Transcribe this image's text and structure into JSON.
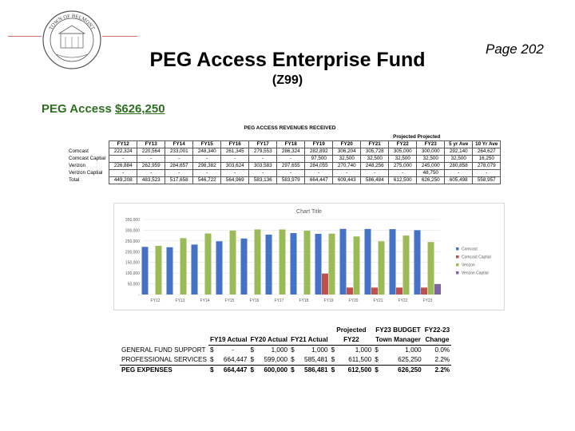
{
  "header": {
    "seal_text_top": "TOWN OF BELMONT",
    "page_number": "Page 202",
    "title": "PEG Access Enterprise Fund",
    "subtitle": "(Z99)"
  },
  "summary": {
    "label": "PEG Access",
    "amount": "$626,250"
  },
  "revenues": {
    "title": "PEG ACCESS REVENUES RECEIVED",
    "projected_label": "Projected Projected",
    "columns": [
      "FY12",
      "FY13",
      "FY14",
      "FY15",
      "FY16",
      "FY17",
      "FY18",
      "FY19",
      "FY20",
      "FY21",
      "FY22",
      "FY23",
      "5 yr Ave",
      "10 Yr Ave"
    ],
    "rows": [
      {
        "label": "Comcast",
        "values": [
          "222,324",
          "220,564",
          "233,001",
          "248,340",
          "261,345",
          "279,553",
          "286,324",
          "282,892",
          "306,204",
          "305,728",
          "305,000",
          "300,000",
          "292,140",
          "264,627"
        ]
      },
      {
        "label": "Comcast Captial",
        "values": [
          "-",
          "-",
          "-",
          "-",
          "-",
          "-",
          "-",
          "97,500",
          "32,500",
          "32,500",
          "32,500",
          "32,500",
          "32,500",
          "16,250"
        ]
      },
      {
        "label": "Verizon",
        "values": [
          "226,884",
          "262,959",
          "284,657",
          "298,382",
          "303,624",
          "303,583",
          "297,655",
          "284,055",
          "270,740",
          "248,256",
          "275,000",
          "245,000",
          "280,858",
          "278,079"
        ]
      },
      {
        "label": "Verizon Captial",
        "values": [
          "-",
          "-",
          "-",
          "-",
          "-",
          "-",
          "-",
          "-",
          "-",
          "-",
          "-",
          "48,750",
          "-",
          "-"
        ]
      },
      {
        "label": "Total",
        "values": [
          "449,208",
          "483,523",
          "517,658",
          "546,722",
          "564,969",
          "583,136",
          "583,979",
          "664,447",
          "609,443",
          "586,484",
          "612,500",
          "626,250",
          "605,498",
          "558,957"
        ]
      }
    ]
  },
  "chart_data": {
    "type": "bar",
    "title": "Chart Title",
    "categories": [
      "FY12",
      "FY13",
      "FY14",
      "FY15",
      "FY16",
      "FY17",
      "FY18",
      "FY19",
      "FY20",
      "FY21",
      "FY22",
      "FY23"
    ],
    "series": [
      {
        "name": "Comcast",
        "color": "#4472c4",
        "values": [
          222324,
          220564,
          233001,
          248340,
          261345,
          279553,
          286324,
          282892,
          306204,
          305728,
          305000,
          300000
        ]
      },
      {
        "name": "Comcast Captial",
        "color": "#c0504d",
        "values": [
          0,
          0,
          0,
          0,
          0,
          0,
          0,
          97500,
          32500,
          32500,
          32500,
          32500
        ]
      },
      {
        "name": "Verizon",
        "color": "#9bbb59",
        "values": [
          226884,
          262959,
          284657,
          298382,
          303624,
          303583,
          297655,
          284055,
          270740,
          248256,
          275000,
          245000
        ]
      },
      {
        "name": "Verizon Captial",
        "color": "#8064a2",
        "values": [
          0,
          0,
          0,
          0,
          0,
          0,
          0,
          0,
          0,
          0,
          0,
          48750
        ]
      }
    ],
    "ylim": [
      0,
      350000
    ],
    "yticks": [
      "-",
      "50,000",
      "100,000",
      "150,000",
      "200,000",
      "250,000",
      "300,000",
      "350,000"
    ],
    "xlabel": "",
    "ylabel": "",
    "grid": true,
    "legend": "right"
  },
  "expenses": {
    "headers_top": {
      "projected": "Projected",
      "budget": "FY23 BUDGET",
      "change": "FY22-23"
    },
    "headers": {
      "fy19": "FY19 Actual",
      "fy20": "FY20 Actual",
      "fy21": "FY21 Actual",
      "fy22": "FY22",
      "town": "Town Manager",
      "change": "Change"
    },
    "currency": "$",
    "rows": [
      {
        "label": "GENERAL FUND SUPPORT",
        "fy19": "-",
        "fy20": "1,000",
        "fy21": "1,000",
        "fy22": "1,000",
        "fy23": "1,000",
        "change": "0.0%"
      },
      {
        "label": "PROFESSIONAL SERVICES",
        "fy19": "664,447",
        "fy20": "599,000",
        "fy21": "585,481",
        "fy22": "611,500",
        "fy23": "625,250",
        "change": "2.2%"
      }
    ],
    "total": {
      "label": "PEG EXPENSES",
      "fy19": "664,447",
      "fy20": "600,000",
      "fy21": "586,481",
      "fy22": "612,500",
      "fy23": "626,250",
      "change": "2.2%"
    }
  }
}
